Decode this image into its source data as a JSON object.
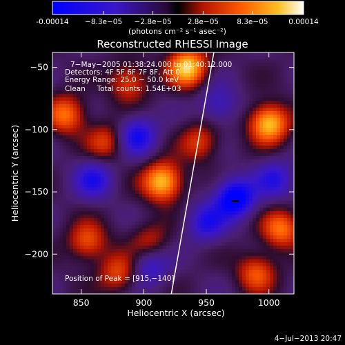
{
  "chart_data": {
    "type": "heatmap",
    "title": "Reconstructed RHESSI Image",
    "xlabel": "Heliocentric X (arcsec)",
    "ylabel": "Heliocentric Y (arcsec)",
    "xlim": [
      827,
      1020
    ],
    "ylim": [
      -232,
      -38
    ],
    "xticks": [
      850,
      900,
      950,
      1000
    ],
    "yticks": [
      -50,
      -100,
      -150,
      -200
    ],
    "colorbar": {
      "min": -0.00014,
      "max": 0.00014,
      "ticks": [
        "-0.00014",
        "−8.3e−05",
        "−2.8e−05",
        "2.8e−05",
        "8.3e−05",
        "0.00014"
      ],
      "tick_values": [
        -0.00014,
        -8.3e-05,
        -2.8e-05,
        2.8e-05,
        8.3e-05,
        0.00014
      ],
      "label": "(photons cm⁻² s⁻¹ asec⁻²)"
    },
    "annotations": [
      "7−May−2005 01:38:24.000 to 01:40:12.000",
      "Detectors: 4F 5F 6F 7F 8F, Att 0",
      "Energy Range: 25.0 − 50.0 keV",
      "Clean     Total counts: 1.54E+03"
    ],
    "peak_label": "Position of Peak = [915,−140]",
    "peak": [
      915,
      -140
    ],
    "limb_line": [
      [
        922,
        -232
      ],
      [
        956,
        -38
      ]
    ],
    "hot_spots": [
      {
        "x": 935,
        "y": -50,
        "value": 1.0
      },
      {
        "x": 1000,
        "y": -95,
        "value": 1.0
      },
      {
        "x": 915,
        "y": -142,
        "value": 1.0
      },
      {
        "x": 838,
        "y": -88,
        "value": 0.7
      },
      {
        "x": 855,
        "y": -190,
        "value": 0.6
      },
      {
        "x": 870,
        "y": -110,
        "value": 0.5
      },
      {
        "x": 888,
        "y": -62,
        "value": 0.55
      },
      {
        "x": 945,
        "y": -110,
        "value": 0.5
      },
      {
        "x": 1010,
        "y": -180,
        "value": 0.7
      },
      {
        "x": 990,
        "y": -215,
        "value": 0.6
      },
      {
        "x": 880,
        "y": -215,
        "value": 0.55
      },
      {
        "x": 905,
        "y": -190,
        "value": 0.4
      }
    ],
    "cold_spots": [
      {
        "x": 973,
        "y": -155,
        "value": -1.0
      },
      {
        "x": 895,
        "y": -105,
        "value": -0.7
      },
      {
        "x": 860,
        "y": -140,
        "value": -0.6
      },
      {
        "x": 950,
        "y": -175,
        "value": -0.6
      },
      {
        "x": 905,
        "y": -210,
        "value": -0.5
      },
      {
        "x": 1005,
        "y": -140,
        "value": -0.55
      },
      {
        "x": 960,
        "y": -80,
        "value": -0.45
      }
    ]
  },
  "timestamp": "4−Jul−2013 20:47"
}
